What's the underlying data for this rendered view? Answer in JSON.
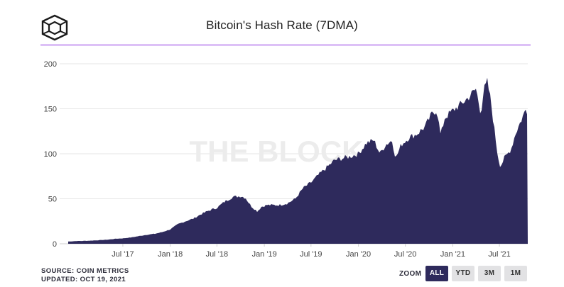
{
  "title": "Bitcoin's Hash Rate (7DMA)",
  "source": "SOURCE: COIN METRICS",
  "updated": "UPDATED: OCT 19, 2021",
  "watermark": "THE BLOCK",
  "zoom": {
    "label": "ZOOM",
    "buttons": [
      "ALL",
      "YTD",
      "3M",
      "1M"
    ],
    "active": "ALL"
  },
  "colors": {
    "area": "#2e2a5c",
    "rule": "#8a2be2",
    "grid": "#e6e6e6",
    "button_bg": "#e2e2e4",
    "button_active": "#2e2a5c"
  },
  "chart_data": {
    "type": "area",
    "title": "Bitcoin's Hash Rate (7DMA)",
    "xlabel": "",
    "ylabel": "",
    "ylim": [
      0,
      200
    ],
    "yticks": [
      0,
      50,
      100,
      150,
      200
    ],
    "xlim": [
      "2016-12-01",
      "2021-10-19"
    ],
    "xticks": [
      {
        "label": "Jul '17",
        "date": "2017-07-01"
      },
      {
        "label": "Jan '18",
        "date": "2018-01-01"
      },
      {
        "label": "Jul '18",
        "date": "2018-07-01"
      },
      {
        "label": "Jan '19",
        "date": "2019-01-01"
      },
      {
        "label": "Jul '19",
        "date": "2019-07-01"
      },
      {
        "label": "Jan '20",
        "date": "2020-01-01"
      },
      {
        "label": "Jul '20",
        "date": "2020-07-01"
      },
      {
        "label": "Jan '21",
        "date": "2021-01-01"
      },
      {
        "label": "Jul '21",
        "date": "2021-07-01"
      }
    ],
    "grid": true,
    "series": [
      {
        "values": [
          [
            "2016-12-01",
            2.5
          ],
          [
            "2017-01-01",
            3
          ],
          [
            "2017-02-01",
            3.2
          ],
          [
            "2017-03-01",
            3.5
          ],
          [
            "2017-04-01",
            4
          ],
          [
            "2017-05-01",
            4.5
          ],
          [
            "2017-06-01",
            5.5
          ],
          [
            "2017-07-01",
            6
          ],
          [
            "2017-08-01",
            7
          ],
          [
            "2017-09-01",
            8.5
          ],
          [
            "2017-10-01",
            10
          ],
          [
            "2017-11-01",
            11
          ],
          [
            "2017-12-01",
            13
          ],
          [
            "2018-01-01",
            16
          ],
          [
            "2018-02-01",
            22
          ],
          [
            "2018-03-01",
            25
          ],
          [
            "2018-04-01",
            28
          ],
          [
            "2018-05-01",
            33
          ],
          [
            "2018-06-01",
            37
          ],
          [
            "2018-07-01",
            40
          ],
          [
            "2018-08-01",
            47
          ],
          [
            "2018-09-01",
            52
          ],
          [
            "2018-10-01",
            53
          ],
          [
            "2018-10-20",
            51
          ],
          [
            "2018-11-10",
            42
          ],
          [
            "2018-12-05",
            36
          ],
          [
            "2018-12-20",
            41
          ],
          [
            "2019-01-10",
            43
          ],
          [
            "2019-02-01",
            43
          ],
          [
            "2019-03-01",
            43
          ],
          [
            "2019-04-01",
            45
          ],
          [
            "2019-05-01",
            50
          ],
          [
            "2019-06-01",
            62
          ],
          [
            "2019-07-01",
            68
          ],
          [
            "2019-08-01",
            77
          ],
          [
            "2019-09-01",
            85
          ],
          [
            "2019-10-01",
            93
          ],
          [
            "2019-11-01",
            95
          ],
          [
            "2019-12-01",
            97
          ],
          [
            "2020-01-01",
            100
          ],
          [
            "2020-02-01",
            112
          ],
          [
            "2020-03-01",
            115
          ],
          [
            "2020-03-25",
            100
          ],
          [
            "2020-04-15",
            110
          ],
          [
            "2020-05-10",
            115
          ],
          [
            "2020-05-25",
            95
          ],
          [
            "2020-06-15",
            110
          ],
          [
            "2020-07-15",
            118
          ],
          [
            "2020-08-15",
            122
          ],
          [
            "2020-09-15",
            130
          ],
          [
            "2020-10-15",
            146
          ],
          [
            "2020-11-01",
            148
          ],
          [
            "2020-11-15",
            120
          ],
          [
            "2020-12-01",
            140
          ],
          [
            "2021-01-01",
            148
          ],
          [
            "2021-02-01",
            155
          ],
          [
            "2021-03-01",
            162
          ],
          [
            "2021-04-01",
            172
          ],
          [
            "2021-04-20",
            145
          ],
          [
            "2021-05-01",
            170
          ],
          [
            "2021-05-15",
            180
          ],
          [
            "2021-05-28",
            160
          ],
          [
            "2021-06-10",
            130
          ],
          [
            "2021-06-25",
            97
          ],
          [
            "2021-07-05",
            86
          ],
          [
            "2021-07-20",
            95
          ],
          [
            "2021-08-15",
            105
          ],
          [
            "2021-09-01",
            122
          ],
          [
            "2021-09-20",
            135
          ],
          [
            "2021-10-05",
            145
          ],
          [
            "2021-10-12",
            150
          ],
          [
            "2021-10-19",
            146
          ]
        ]
      }
    ]
  }
}
